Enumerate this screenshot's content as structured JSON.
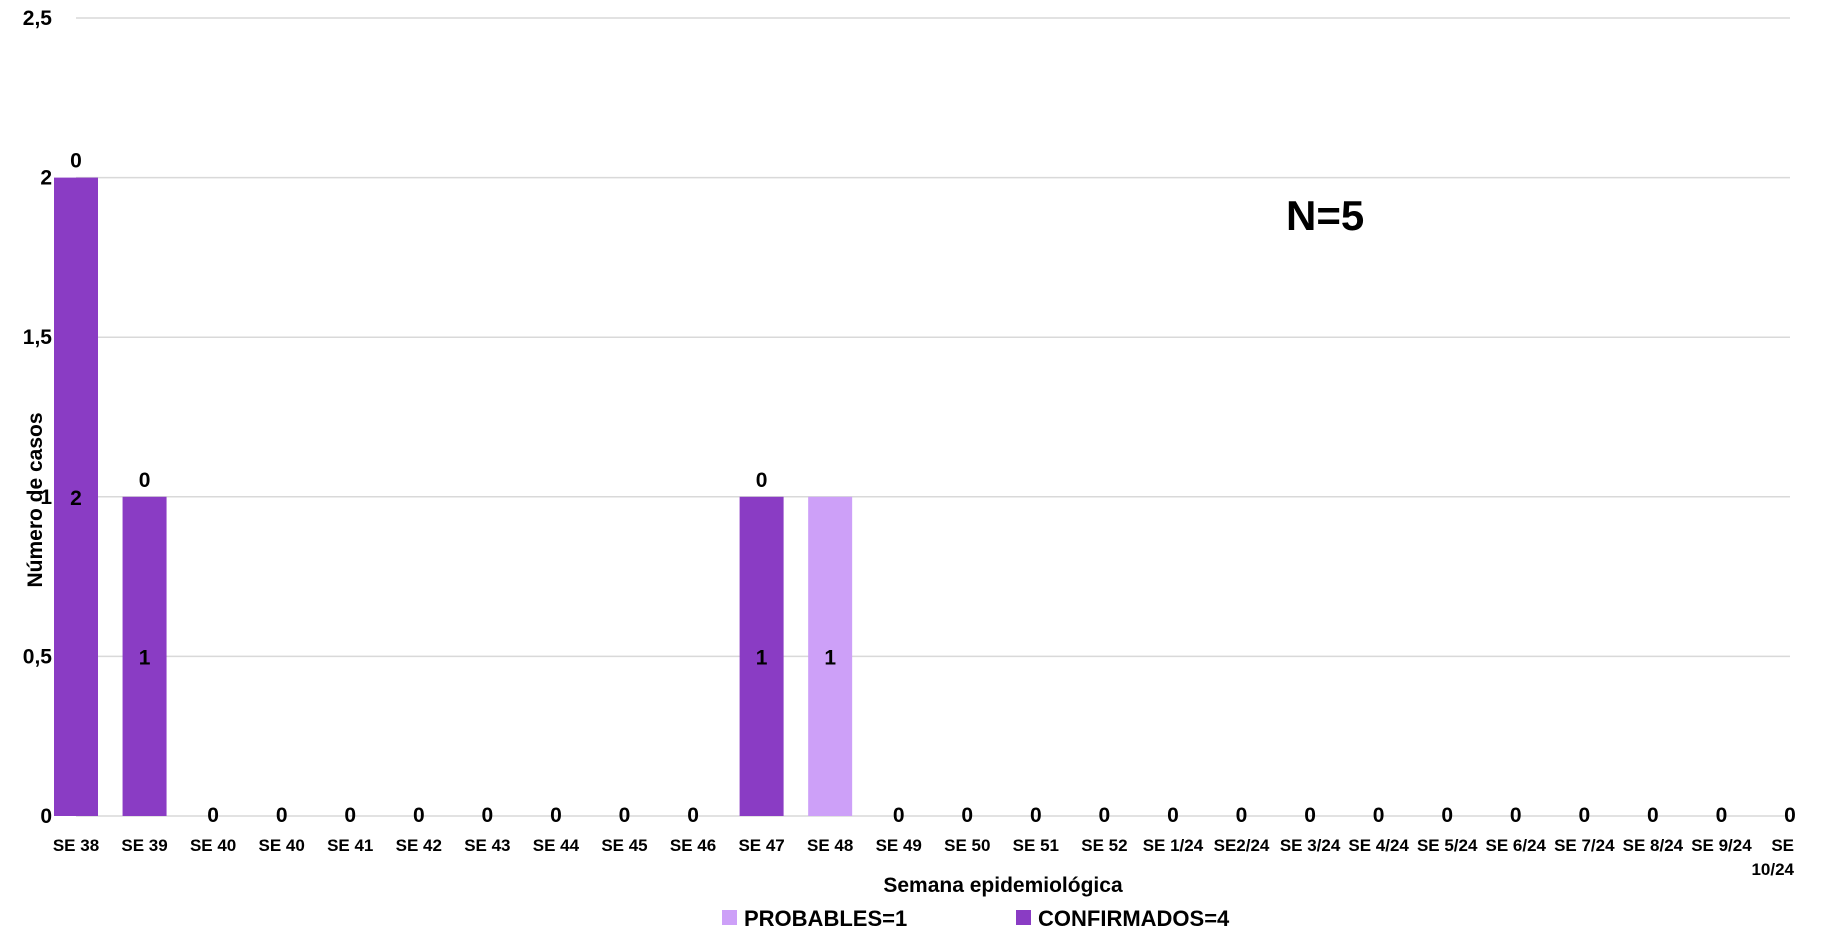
{
  "chart_data": {
    "type": "bar",
    "stacked": true,
    "categories": [
      "SE 38",
      "SE 39",
      "SE 40",
      "SE 40",
      "SE 41",
      "SE 42",
      "SE 43",
      "SE 44",
      "SE 45",
      "SE 46",
      "SE 47",
      "SE 48",
      "SE 49",
      "SE 50",
      "SE 51",
      "SE 52",
      "SE 1/24",
      "SE2/24",
      "SE 3/24",
      "SE 4/24",
      "SE 5/24",
      "SE 6/24",
      "SE 7/24",
      "SE 8/24",
      "SE 9/24",
      "SE 10/24"
    ],
    "series": [
      {
        "name": "CONFIRMADOS=4",
        "color": "#8a3cc4",
        "values": [
          2,
          1,
          0,
          0,
          0,
          0,
          0,
          0,
          0,
          0,
          1,
          0,
          0,
          0,
          0,
          0,
          0,
          0,
          0,
          0,
          0,
          0,
          0,
          0,
          0,
          0
        ],
        "labels": [
          "2",
          "1",
          "",
          "",
          "",
          "",
          "",
          "",
          "",
          "",
          "1",
          "",
          "",
          "",
          "",
          "",
          "",
          "",
          "",
          "",
          "",
          "",
          "",
          "",
          "",
          ""
        ]
      },
      {
        "name": "PROBABLES=1",
        "color": "#cda0f8",
        "values": [
          0,
          0,
          0,
          0,
          0,
          0,
          0,
          0,
          0,
          0,
          0,
          1,
          0,
          0,
          0,
          0,
          0,
          0,
          0,
          0,
          0,
          0,
          0,
          0,
          0,
          0
        ],
        "labels": [
          "0",
          "0",
          "0",
          "0",
          "0",
          "0",
          "0",
          "0",
          "0",
          "0",
          "0",
          "1",
          "0",
          "0",
          "0",
          "0",
          "0",
          "0",
          "0",
          "0",
          "0",
          "0",
          "0",
          "0",
          "0",
          "0"
        ]
      }
    ],
    "legend_order": [
      "PROBABLES=1",
      "CONFIRMADOS=4"
    ],
    "xlabel": "Semana epidemiológica",
    "ylabel": "Número de casos",
    "ylim": [
      0,
      2.5
    ],
    "yticks": [
      0,
      0.5,
      1,
      1.5,
      2,
      2.5
    ],
    "ytick_labels": [
      "0",
      "0,5",
      "1",
      "1,5",
      "2",
      "2,5"
    ],
    "grid": true,
    "legend_position": "bottom",
    "annotation": "N=5"
  }
}
